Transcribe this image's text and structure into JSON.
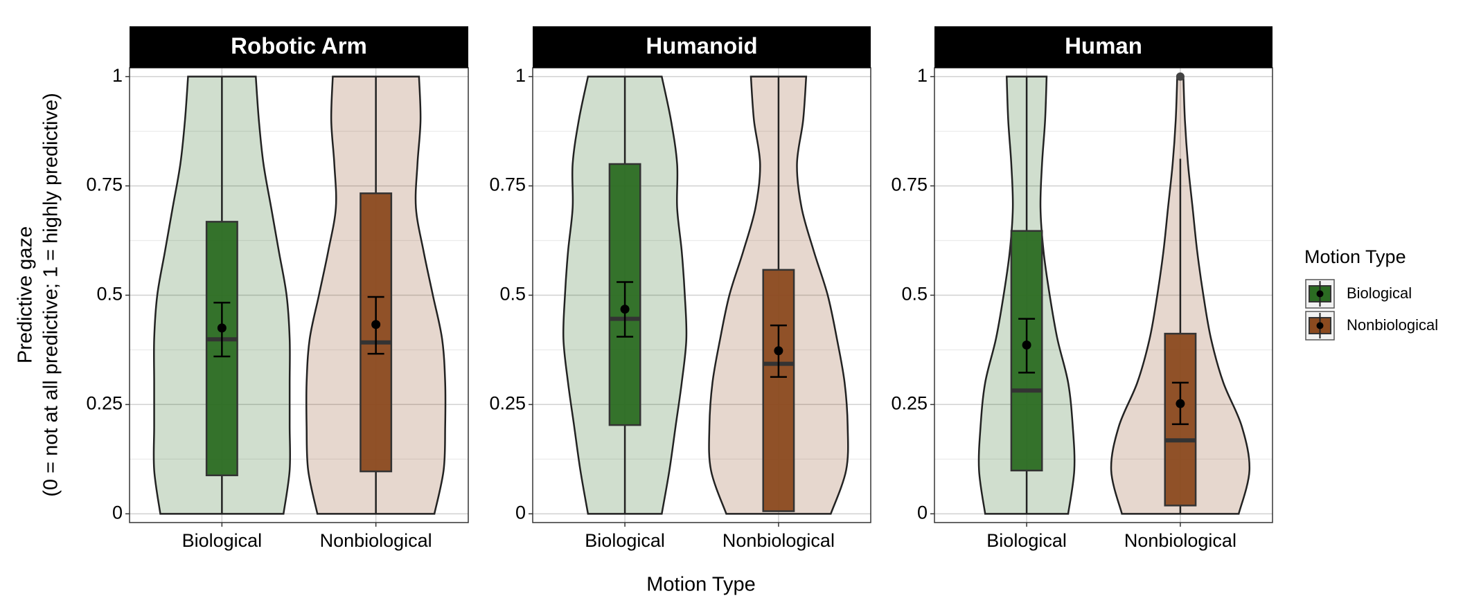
{
  "chart_data": {
    "type": "violin",
    "y_label": [
      "Predictive gaze",
      "(0 = not at all predictive; 1 = highly predictive)"
    ],
    "x_label": "Motion Type",
    "legend_title": "Motion Type",
    "categories": [
      "Biological",
      "Nonbiological"
    ],
    "series": [
      {
        "name": "Biological",
        "color": "#2b6b22"
      },
      {
        "name": "Nonbiological",
        "color": "#8b4a1f"
      }
    ],
    "ylim": [
      -0.02,
      1.02
    ],
    "yticks": [
      0,
      0.25,
      0.5,
      0.75,
      1
    ],
    "y_minor_grid": [
      0.125,
      0.375,
      0.625,
      0.875
    ],
    "xlim": [
      0.4,
      2.6
    ],
    "grid": true,
    "violin_y": [
      0,
      0.1,
      0.2,
      0.3,
      0.4,
      0.5,
      0.6,
      0.7,
      0.8,
      0.9,
      1
    ],
    "panels": [
      {
        "title": "Robotic Arm",
        "groups": [
          {
            "whisker_low": 0,
            "q1": 0.088,
            "median": 0.399,
            "q3": 0.668,
            "whisker_high": 1,
            "mean": 0.425,
            "mean_ci": [
              0.36,
              0.483
            ],
            "violin_halfwidth": [
              0.4,
              0.44,
              0.44,
              0.44,
              0.44,
              0.42,
              0.37,
              0.32,
              0.27,
              0.24,
              0.22
            ]
          },
          {
            "whisker_low": 0,
            "q1": 0.097,
            "median": 0.392,
            "q3": 0.733,
            "whisker_high": 1,
            "mean": 0.433,
            "mean_ci": [
              0.366,
              0.496
            ],
            "violin_halfwidth": [
              0.38,
              0.44,
              0.45,
              0.45,
              0.43,
              0.37,
              0.31,
              0.26,
              0.27,
              0.29,
              0.28
            ]
          }
        ]
      },
      {
        "title": "Humanoid",
        "groups": [
          {
            "whisker_low": 0,
            "q1": 0.203,
            "median": 0.446,
            "q3": 0.8,
            "whisker_high": 1,
            "mean": 0.468,
            "mean_ci": [
              0.405,
              0.53
            ],
            "violin_halfwidth": [
              0.24,
              0.29,
              0.33,
              0.37,
              0.4,
              0.39,
              0.37,
              0.34,
              0.34,
              0.3,
              0.24
            ]
          },
          {
            "whisker_low": 0.006,
            "q1": 0.006,
            "median": 0.343,
            "q3": 0.558,
            "whisker_high": 1,
            "mean": 0.373,
            "mean_ci": [
              0.313,
              0.431
            ],
            "violin_halfwidth": [
              0.34,
              0.44,
              0.45,
              0.43,
              0.38,
              0.32,
              0.23,
              0.15,
              0.12,
              0.16,
              0.18
            ]
          }
        ]
      },
      {
        "title": "Human",
        "groups": [
          {
            "whisker_low": 0,
            "q1": 0.099,
            "median": 0.282,
            "q3": 0.647,
            "whisker_high": 1,
            "mean": 0.386,
            "mean_ci": [
              0.323,
              0.446
            ],
            "violin_halfwidth": [
              0.27,
              0.31,
              0.3,
              0.27,
              0.2,
              0.15,
              0.11,
              0.09,
              0.1,
              0.12,
              0.13
            ]
          },
          {
            "whisker_low": 0,
            "q1": 0.019,
            "median": 0.168,
            "q3": 0.412,
            "whisker_high": 0.812,
            "outliers": [
              1
            ],
            "mean": 0.252,
            "mean_ci": [
              0.205,
              0.3
            ],
            "violin_halfwidth": [
              0.38,
              0.45,
              0.4,
              0.28,
              0.2,
              0.15,
              0.11,
              0.08,
              0.05,
              0.03,
              0.02
            ]
          }
        ]
      }
    ]
  }
}
